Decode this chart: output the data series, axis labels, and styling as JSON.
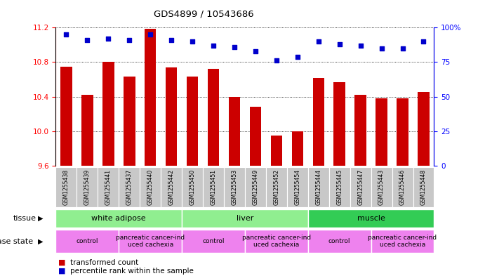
{
  "title": "GDS4899 / 10543686",
  "samples": [
    "GSM1255438",
    "GSM1255439",
    "GSM1255441",
    "GSM1255437",
    "GSM1255440",
    "GSM1255442",
    "GSM1255450",
    "GSM1255451",
    "GSM1255453",
    "GSM1255449",
    "GSM1255452",
    "GSM1255454",
    "GSM1255444",
    "GSM1255445",
    "GSM1255447",
    "GSM1255443",
    "GSM1255446",
    "GSM1255448"
  ],
  "transformed_count": [
    10.75,
    10.42,
    10.8,
    10.63,
    11.19,
    10.74,
    10.63,
    10.72,
    10.4,
    10.28,
    9.95,
    10.0,
    10.62,
    10.57,
    10.42,
    10.38,
    10.38,
    10.45
  ],
  "percentile_rank": [
    95,
    91,
    92,
    91,
    95,
    91,
    90,
    87,
    86,
    83,
    76,
    79,
    90,
    88,
    87,
    85,
    85,
    90
  ],
  "ylim_left": [
    9.6,
    11.2
  ],
  "ylim_right": [
    0,
    100
  ],
  "yticks_left": [
    9.6,
    10.0,
    10.4,
    10.8,
    11.2
  ],
  "yticks_right": [
    0,
    25,
    50,
    75,
    100
  ],
  "tissue_groups": [
    {
      "label": "white adipose",
      "start": 0,
      "end": 5,
      "color": "#90ee90"
    },
    {
      "label": "liver",
      "start": 6,
      "end": 11,
      "color": "#90ee90"
    },
    {
      "label": "muscle",
      "start": 12,
      "end": 17,
      "color": "#33cc55"
    }
  ],
  "disease_groups": [
    {
      "label": "control",
      "start": 0,
      "end": 2,
      "color": "#ee82ee"
    },
    {
      "label": "pancreatic cancer-ind\nuced cachexia",
      "start": 3,
      "end": 5,
      "color": "#ee82ee"
    },
    {
      "label": "control",
      "start": 6,
      "end": 8,
      "color": "#ee82ee"
    },
    {
      "label": "pancreatic cancer-ind\nuced cachexia",
      "start": 9,
      "end": 11,
      "color": "#ee82ee"
    },
    {
      "label": "control",
      "start": 12,
      "end": 14,
      "color": "#ee82ee"
    },
    {
      "label": "pancreatic cancer-ind\nuced cachexia",
      "start": 15,
      "end": 17,
      "color": "#ee82ee"
    }
  ],
  "bar_color": "#cc0000",
  "dot_color": "#0000cc",
  "background_color": "#ffffff",
  "tick_bg_color": "#c8c8c8"
}
